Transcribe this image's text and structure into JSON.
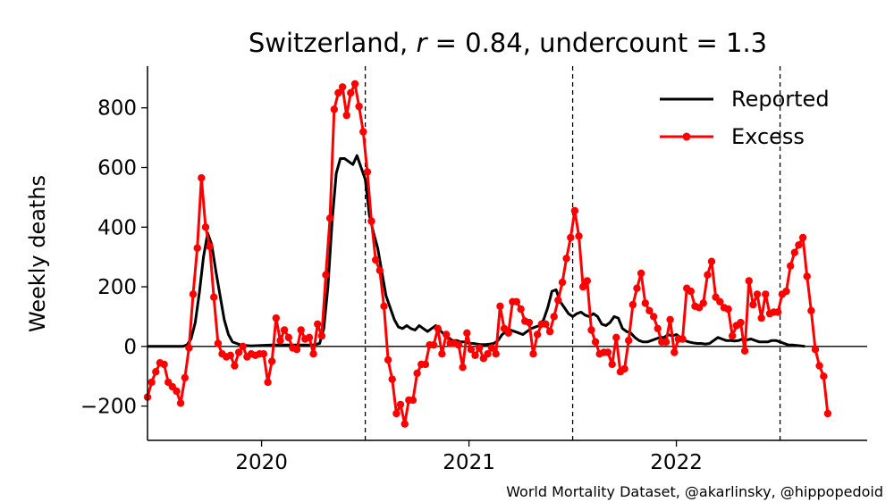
{
  "chart_data": {
    "type": "line",
    "title_prefix": "Switzerland, ",
    "title_r_symbol": "r",
    "title_r_value": " = 0.84, undercount = 1.3",
    "ylabel": "Weekly deaths",
    "xlabel": "",
    "credit": "World Mortality Dataset, @akarlinsky, @hippopedoid",
    "x_ticks": [
      "2020",
      "2021",
      "2022"
    ],
    "y_ticks": [
      "−200",
      "0",
      "200",
      "400",
      "600",
      "800"
    ],
    "ylim": [
      -315,
      940
    ],
    "xlim": [
      2019.45,
      2022.92
    ],
    "grid": false,
    "legend_position": "top-right",
    "year_markers": [
      2020.5,
      2021.5,
      2022.5
    ],
    "zero_line": 0,
    "colors": {
      "reported": "#000000",
      "excess": "#ff0000"
    },
    "series": [
      {
        "name": "Reported",
        "style": "line",
        "points": [
          [
            2019.45,
            0
          ],
          [
            2019.62,
            0
          ],
          [
            2019.64,
            5
          ],
          [
            2019.66,
            25
          ],
          [
            2019.68,
            80
          ],
          [
            2019.7,
            180
          ],
          [
            2019.72,
            300
          ],
          [
            2019.74,
            380
          ],
          [
            2019.76,
            340
          ],
          [
            2019.78,
            250
          ],
          [
            2019.8,
            170
          ],
          [
            2019.82,
            90
          ],
          [
            2019.84,
            40
          ],
          [
            2019.86,
            15
          ],
          [
            2019.88,
            10
          ],
          [
            2019.9,
            5
          ],
          [
            2019.92,
            3
          ],
          [
            2019.95,
            2
          ],
          [
            2020.0,
            3
          ],
          [
            2020.05,
            5
          ],
          [
            2020.1,
            5
          ],
          [
            2020.15,
            5
          ],
          [
            2020.2,
            5
          ],
          [
            2020.25,
            5
          ],
          [
            2020.28,
            10
          ],
          [
            2020.3,
            60
          ],
          [
            2020.32,
            200
          ],
          [
            2020.34,
            420
          ],
          [
            2020.36,
            580
          ],
          [
            2020.38,
            630
          ],
          [
            2020.4,
            630
          ],
          [
            2020.42,
            620
          ],
          [
            2020.44,
            610
          ],
          [
            2020.46,
            640
          ],
          [
            2020.48,
            600
          ],
          [
            2020.5,
            560
          ],
          [
            2020.52,
            440
          ],
          [
            2020.54,
            380
          ],
          [
            2020.56,
            330
          ],
          [
            2020.58,
            250
          ],
          [
            2020.6,
            170
          ],
          [
            2020.62,
            130
          ],
          [
            2020.64,
            90
          ],
          [
            2020.66,
            65
          ],
          [
            2020.68,
            60
          ],
          [
            2020.7,
            70
          ],
          [
            2020.72,
            60
          ],
          [
            2020.74,
            55
          ],
          [
            2020.76,
            70
          ],
          [
            2020.78,
            60
          ],
          [
            2020.8,
            50
          ],
          [
            2020.82,
            60
          ],
          [
            2020.84,
            70
          ],
          [
            2020.86,
            55
          ],
          [
            2020.88,
            40
          ],
          [
            2020.9,
            30
          ],
          [
            2020.92,
            20
          ],
          [
            2020.94,
            20
          ],
          [
            2020.96,
            15
          ],
          [
            2020.98,
            15
          ],
          [
            2021.0,
            10
          ],
          [
            2021.02,
            10
          ],
          [
            2021.04,
            8
          ],
          [
            2021.06,
            6
          ],
          [
            2021.08,
            6
          ],
          [
            2021.1,
            8
          ],
          [
            2021.12,
            10
          ],
          [
            2021.14,
            20
          ],
          [
            2021.16,
            40
          ],
          [
            2021.18,
            50
          ],
          [
            2021.2,
            55
          ],
          [
            2021.22,
            50
          ],
          [
            2021.24,
            45
          ],
          [
            2021.26,
            40
          ],
          [
            2021.28,
            50
          ],
          [
            2021.3,
            60
          ],
          [
            2021.32,
            65
          ],
          [
            2021.34,
            70
          ],
          [
            2021.36,
            90
          ],
          [
            2021.38,
            130
          ],
          [
            2021.4,
            185
          ],
          [
            2021.42,
            190
          ],
          [
            2021.44,
            150
          ],
          [
            2021.46,
            130
          ],
          [
            2021.48,
            110
          ],
          [
            2021.5,
            100
          ],
          [
            2021.52,
            110
          ],
          [
            2021.54,
            115
          ],
          [
            2021.56,
            105
          ],
          [
            2021.58,
            100
          ],
          [
            2021.6,
            110
          ],
          [
            2021.62,
            100
          ],
          [
            2021.64,
            75
          ],
          [
            2021.66,
            70
          ],
          [
            2021.68,
            80
          ],
          [
            2021.7,
            100
          ],
          [
            2021.72,
            95
          ],
          [
            2021.74,
            60
          ],
          [
            2021.76,
            50
          ],
          [
            2021.78,
            45
          ],
          [
            2021.8,
            30
          ],
          [
            2021.82,
            20
          ],
          [
            2021.84,
            15
          ],
          [
            2021.86,
            15
          ],
          [
            2021.88,
            20
          ],
          [
            2021.9,
            25
          ],
          [
            2021.92,
            30
          ],
          [
            2021.94,
            30
          ],
          [
            2021.96,
            40
          ],
          [
            2021.98,
            35
          ],
          [
            2022.0,
            40
          ],
          [
            2022.02,
            30
          ],
          [
            2022.04,
            20
          ],
          [
            2022.06,
            15
          ],
          [
            2022.08,
            12
          ],
          [
            2022.1,
            10
          ],
          [
            2022.12,
            10
          ],
          [
            2022.14,
            8
          ],
          [
            2022.16,
            10
          ],
          [
            2022.18,
            20
          ],
          [
            2022.2,
            30
          ],
          [
            2022.22,
            25
          ],
          [
            2022.24,
            20
          ],
          [
            2022.26,
            20
          ],
          [
            2022.28,
            18
          ],
          [
            2022.3,
            20
          ],
          [
            2022.32,
            25
          ],
          [
            2022.34,
            22
          ],
          [
            2022.36,
            25
          ],
          [
            2022.38,
            20
          ],
          [
            2022.4,
            15
          ],
          [
            2022.42,
            15
          ],
          [
            2022.44,
            15
          ],
          [
            2022.46,
            20
          ],
          [
            2022.48,
            20
          ],
          [
            2022.5,
            15
          ],
          [
            2022.52,
            10
          ],
          [
            2022.54,
            5
          ],
          [
            2022.56,
            5
          ],
          [
            2022.58,
            3
          ],
          [
            2022.6,
            2
          ],
          [
            2022.62,
            0
          ]
        ]
      },
      {
        "name": "Excess",
        "style": "line-marker",
        "points": [
          [
            2019.45,
            -170
          ],
          [
            2019.47,
            -120
          ],
          [
            2019.49,
            -85
          ],
          [
            2019.51,
            -55
          ],
          [
            2019.53,
            -60
          ],
          [
            2019.55,
            -120
          ],
          [
            2019.57,
            -135
          ],
          [
            2019.59,
            -150
          ],
          [
            2019.61,
            -190
          ],
          [
            2019.63,
            -105
          ],
          [
            2019.65,
            -5
          ],
          [
            2019.67,
            175
          ],
          [
            2019.69,
            330
          ],
          [
            2019.71,
            565
          ],
          [
            2019.73,
            400
          ],
          [
            2019.75,
            335
          ],
          [
            2019.77,
            165
          ],
          [
            2019.79,
            10
          ],
          [
            2019.81,
            -25
          ],
          [
            2019.83,
            -35
          ],
          [
            2019.85,
            -30
          ],
          [
            2019.87,
            -65
          ],
          [
            2019.89,
            -20
          ],
          [
            2019.91,
            0
          ],
          [
            2019.93,
            -35
          ],
          [
            2019.95,
            -25
          ],
          [
            2019.97,
            -30
          ],
          [
            2019.99,
            -25
          ],
          [
            2020.01,
            -25
          ],
          [
            2020.03,
            -120
          ],
          [
            2020.05,
            -50
          ],
          [
            2020.07,
            95
          ],
          [
            2020.09,
            20
          ],
          [
            2020.11,
            55
          ],
          [
            2020.13,
            30
          ],
          [
            2020.15,
            -5
          ],
          [
            2020.17,
            -10
          ],
          [
            2020.19,
            55
          ],
          [
            2020.21,
            25
          ],
          [
            2020.23,
            30
          ],
          [
            2020.25,
            -25
          ],
          [
            2020.27,
            75
          ],
          [
            2020.29,
            35
          ],
          [
            2020.31,
            240
          ],
          [
            2020.33,
            430
          ],
          [
            2020.35,
            795
          ],
          [
            2020.37,
            850
          ],
          [
            2020.39,
            870
          ],
          [
            2020.41,
            775
          ],
          [
            2020.43,
            850
          ],
          [
            2020.45,
            880
          ],
          [
            2020.47,
            805
          ],
          [
            2020.49,
            720
          ],
          [
            2020.51,
            585
          ],
          [
            2020.53,
            420
          ],
          [
            2020.55,
            290
          ],
          [
            2020.57,
            255
          ],
          [
            2020.59,
            135
          ],
          [
            2020.61,
            -45
          ],
          [
            2020.63,
            -110
          ],
          [
            2020.65,
            -225
          ],
          [
            2020.67,
            -195
          ],
          [
            2020.69,
            -260
          ],
          [
            2020.71,
            -180
          ],
          [
            2020.73,
            -180
          ],
          [
            2020.75,
            -90
          ],
          [
            2020.77,
            -60
          ],
          [
            2020.79,
            -60
          ],
          [
            2020.81,
            5
          ],
          [
            2020.83,
            5
          ],
          [
            2020.85,
            60
          ],
          [
            2020.87,
            -25
          ],
          [
            2020.89,
            40
          ],
          [
            2020.91,
            10
          ],
          [
            2020.93,
            10
          ],
          [
            2020.95,
            5
          ],
          [
            2020.97,
            -70
          ],
          [
            2020.99,
            45
          ],
          [
            2021.01,
            -10
          ],
          [
            2021.03,
            -30
          ],
          [
            2021.05,
            -5
          ],
          [
            2021.07,
            -40
          ],
          [
            2021.09,
            -25
          ],
          [
            2021.11,
            -5
          ],
          [
            2021.13,
            -25
          ],
          [
            2021.15,
            135
          ],
          [
            2021.17,
            60
          ],
          [
            2021.19,
            45
          ],
          [
            2021.21,
            150
          ],
          [
            2021.23,
            150
          ],
          [
            2021.25,
            125
          ],
          [
            2021.27,
            85
          ],
          [
            2021.29,
            80
          ],
          [
            2021.31,
            -25
          ],
          [
            2021.33,
            40
          ],
          [
            2021.35,
            75
          ],
          [
            2021.37,
            75
          ],
          [
            2021.39,
            50
          ],
          [
            2021.41,
            100
          ],
          [
            2021.43,
            155
          ],
          [
            2021.45,
            215
          ],
          [
            2021.47,
            295
          ],
          [
            2021.49,
            365
          ],
          [
            2021.51,
            455
          ],
          [
            2021.53,
            370
          ],
          [
            2021.55,
            200
          ],
          [
            2021.57,
            220
          ],
          [
            2021.59,
            55
          ],
          [
            2021.61,
            15
          ],
          [
            2021.63,
            -25
          ],
          [
            2021.65,
            -20
          ],
          [
            2021.67,
            -20
          ],
          [
            2021.69,
            -60
          ],
          [
            2021.71,
            30
          ],
          [
            2021.73,
            -85
          ],
          [
            2021.75,
            -75
          ],
          [
            2021.77,
            20
          ],
          [
            2021.79,
            140
          ],
          [
            2021.81,
            195
          ],
          [
            2021.83,
            245
          ],
          [
            2021.85,
            145
          ],
          [
            2021.87,
            120
          ],
          [
            2021.89,
            100
          ],
          [
            2021.91,
            60
          ],
          [
            2021.93,
            15
          ],
          [
            2021.95,
            15
          ],
          [
            2021.97,
            90
          ],
          [
            2021.99,
            -20
          ],
          [
            2022.01,
            25
          ],
          [
            2022.03,
            25
          ],
          [
            2022.05,
            195
          ],
          [
            2022.07,
            185
          ],
          [
            2022.09,
            135
          ],
          [
            2022.11,
            130
          ],
          [
            2022.13,
            145
          ],
          [
            2022.15,
            240
          ],
          [
            2022.17,
            285
          ],
          [
            2022.19,
            165
          ],
          [
            2022.21,
            150
          ],
          [
            2022.23,
            130
          ],
          [
            2022.25,
            125
          ],
          [
            2022.27,
            35
          ],
          [
            2022.29,
            70
          ],
          [
            2022.31,
            80
          ],
          [
            2022.33,
            -15
          ],
          [
            2022.35,
            220
          ],
          [
            2022.37,
            140
          ],
          [
            2022.39,
            175
          ],
          [
            2022.41,
            95
          ],
          [
            2022.43,
            175
          ],
          [
            2022.45,
            110
          ],
          [
            2022.47,
            115
          ],
          [
            2022.49,
            115
          ],
          [
            2022.51,
            175
          ],
          [
            2022.53,
            185
          ],
          [
            2022.55,
            270
          ],
          [
            2022.57,
            315
          ],
          [
            2022.59,
            340
          ],
          [
            2022.61,
            365
          ],
          [
            2022.63,
            235
          ],
          [
            2022.65,
            120
          ],
          [
            2022.67,
            -10
          ],
          [
            2022.69,
            -65
          ],
          [
            2022.71,
            -100
          ],
          [
            2022.73,
            -225
          ]
        ]
      }
    ]
  }
}
